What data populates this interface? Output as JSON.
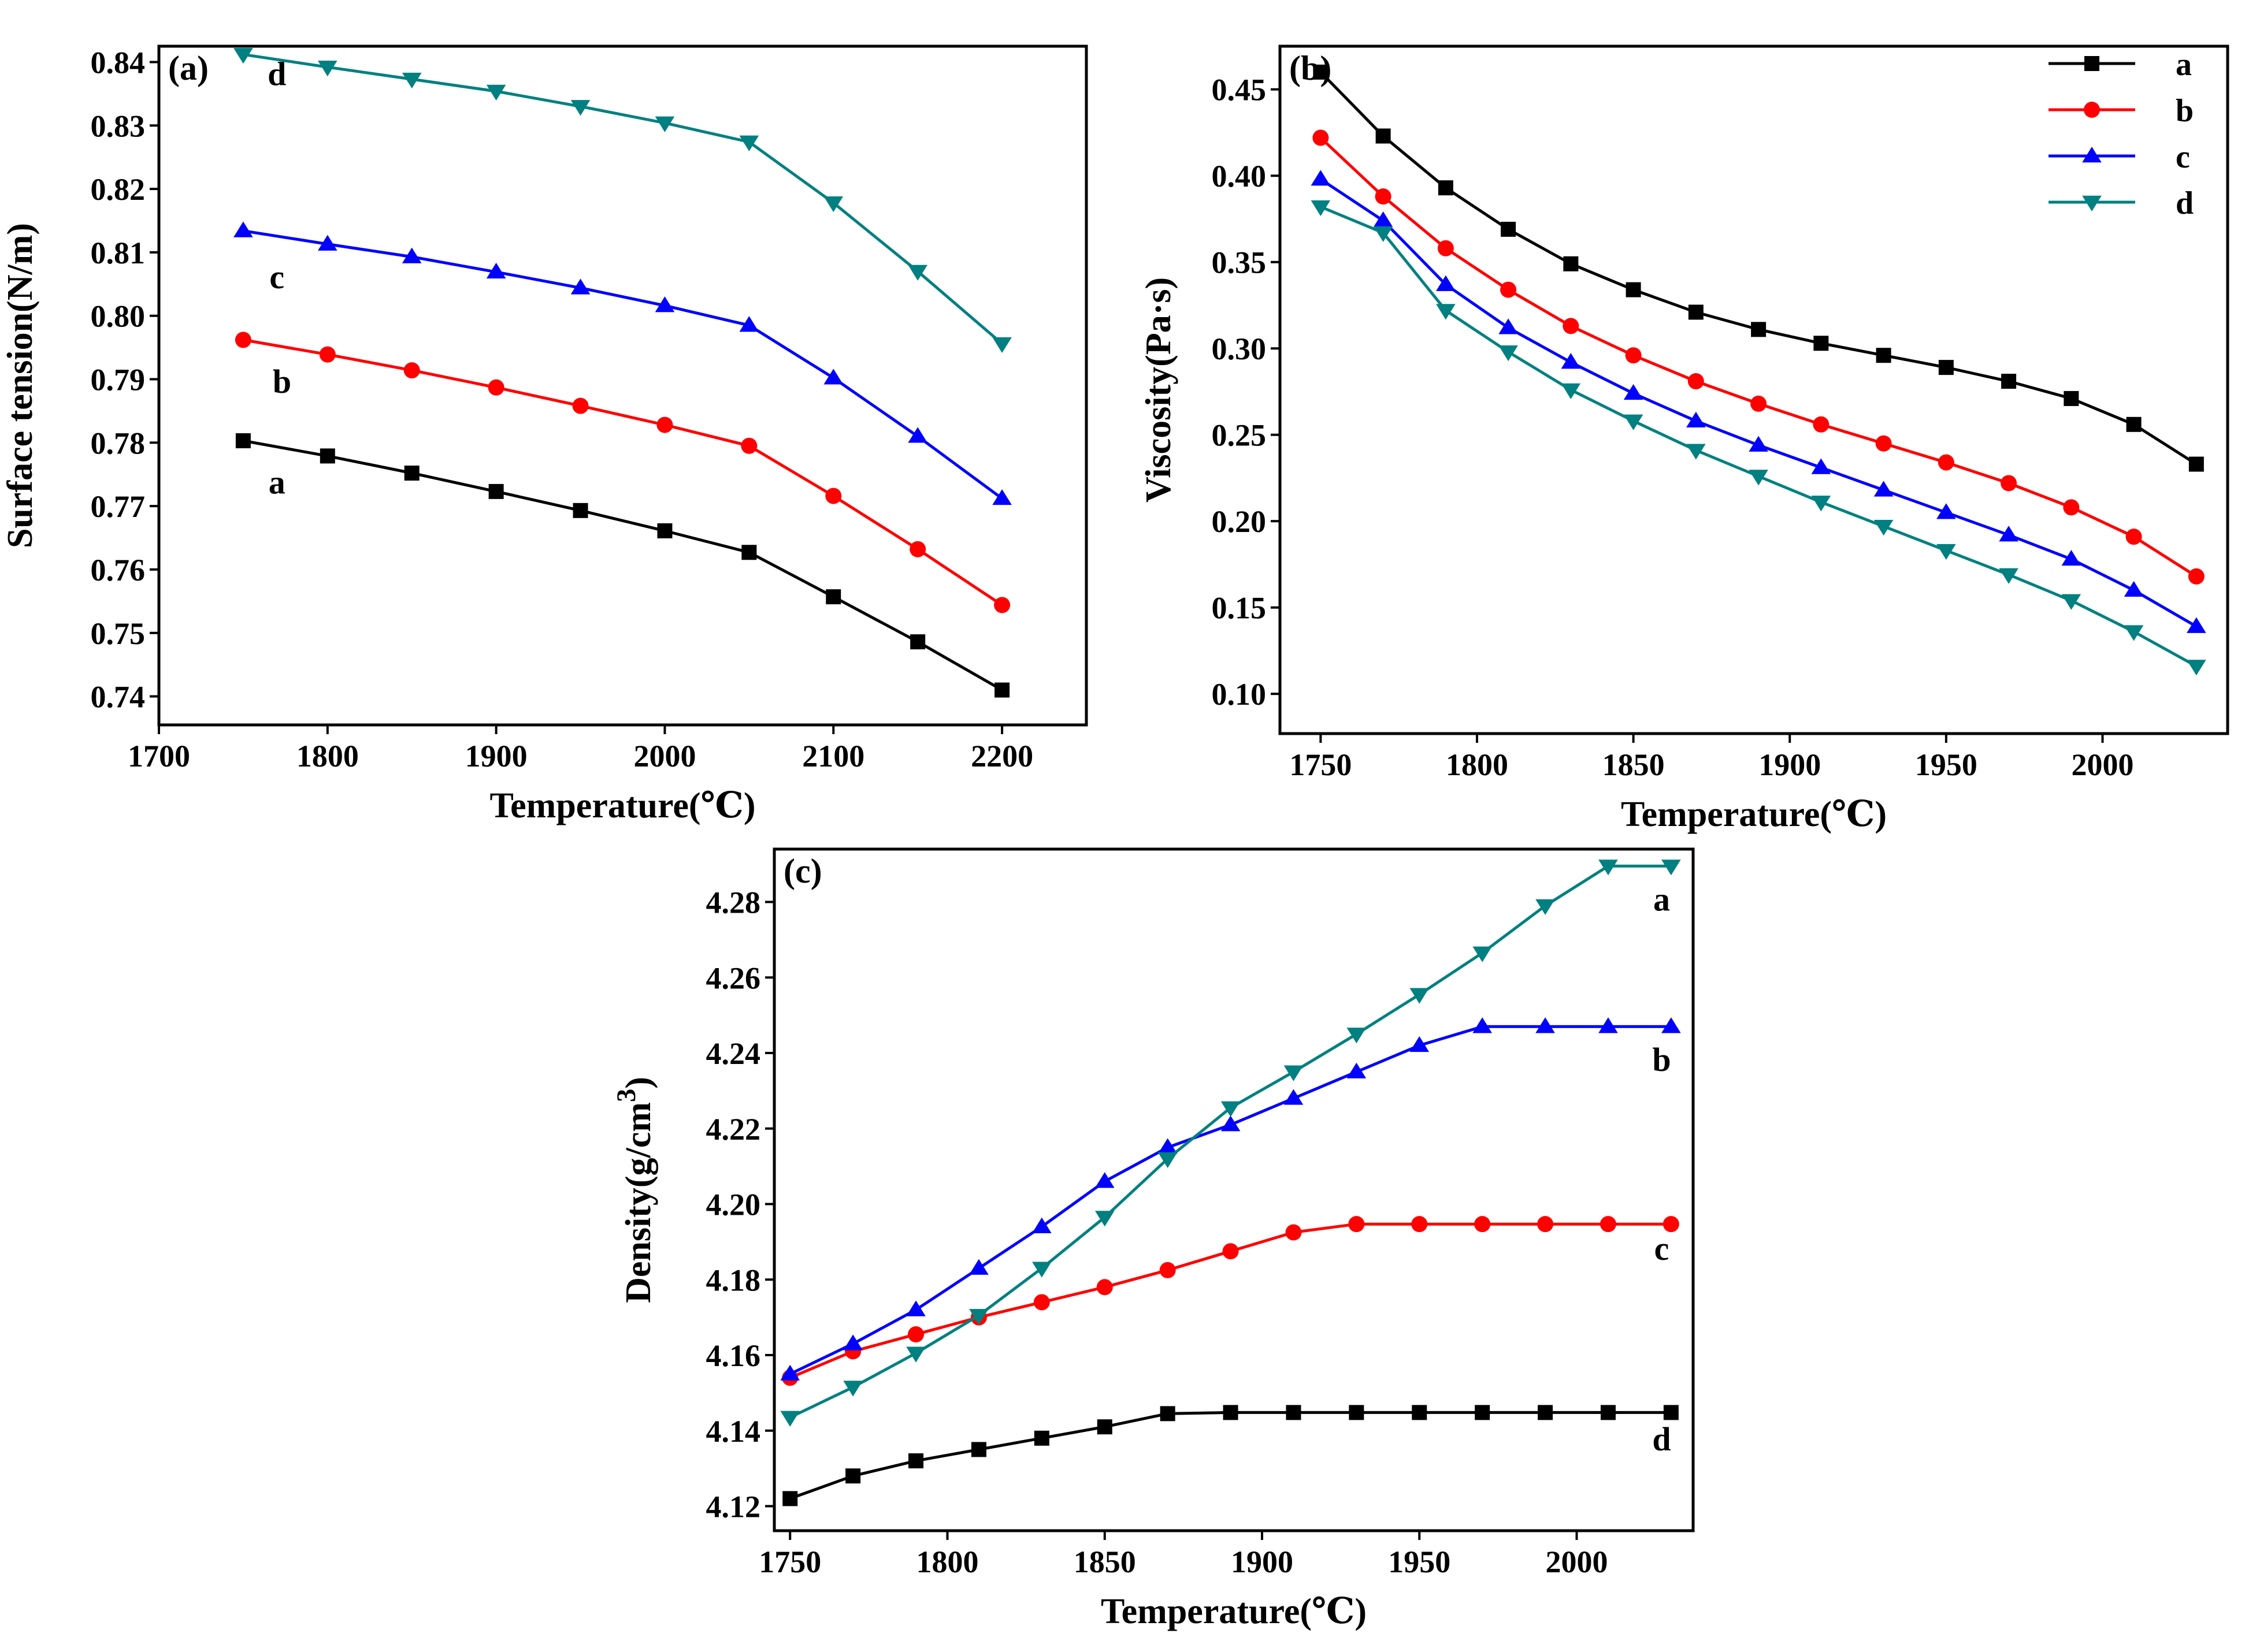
{
  "chart_data": [
    {
      "type": "line",
      "panel_label": "(a)",
      "xlabel": "Temperature(℃)",
      "ylabel": "Surface tension(N/m)",
      "xlim": [
        1700,
        2250
      ],
      "ylim": [
        0.7355,
        0.8425
      ],
      "xticks": [
        1700,
        1800,
        1900,
        2000,
        2100,
        2200
      ],
      "yticks": [
        0.74,
        0.75,
        0.76,
        0.77,
        0.78,
        0.79,
        0.8,
        0.81,
        0.82,
        0.83,
        0.84
      ],
      "ytick_labels": [
        "0.74",
        "0.75",
        "0.76",
        "0.77",
        "0.78",
        "0.79",
        "0.80",
        "0.81",
        "0.82",
        "0.83",
        "0.84"
      ],
      "legend": "none",
      "grid": false,
      "x": [
        1750,
        1800,
        1850,
        1900,
        1950,
        2000,
        2050,
        2100,
        2150,
        2200
      ],
      "series": [
        {
          "name": "a",
          "color": "#000000",
          "marker": "square",
          "values": [
            0.7803,
            0.7779,
            0.7752,
            0.7723,
            0.7693,
            0.7661,
            0.7627,
            0.7557,
            0.7486,
            0.741
          ],
          "label_pos": [
            1770,
            0.7736
          ]
        },
        {
          "name": "b",
          "color": "#ff0000",
          "marker": "circle",
          "values": [
            0.7962,
            0.7939,
            0.7914,
            0.7887,
            0.7858,
            0.7828,
            0.7795,
            0.7716,
            0.7632,
            0.7544
          ],
          "label_pos": [
            1773,
            0.7895
          ]
        },
        {
          "name": "c",
          "color": "#0000ff",
          "marker": "triangle-up",
          "values": [
            0.8134,
            0.8113,
            0.8093,
            0.8069,
            0.8044,
            0.8016,
            0.7985,
            0.7902,
            0.781,
            0.7712
          ],
          "label_pos": [
            1770,
            0.806
          ]
        },
        {
          "name": "d",
          "color": "#008080",
          "marker": "triangle-down",
          "values": [
            0.8412,
            0.8392,
            0.8373,
            0.8354,
            0.833,
            0.8304,
            0.8274,
            0.8178,
            0.807,
            0.7956
          ],
          "label_pos": [
            1770,
            0.838
          ]
        }
      ]
    },
    {
      "type": "line",
      "panel_label": "(b)",
      "xlabel": "Temperature(℃)",
      "ylabel": "Viscosity(Pa·s)",
      "xlim": [
        1737,
        2040
      ],
      "ylim": [
        0.077,
        0.475
      ],
      "xticks": [
        1750,
        1800,
        1850,
        1900,
        1950,
        2000
      ],
      "yticks": [
        0.1,
        0.15,
        0.2,
        0.25,
        0.3,
        0.35,
        0.4,
        0.45
      ],
      "ytick_labels": [
        "0.10",
        "0.15",
        "0.20",
        "0.25",
        "0.30",
        "0.35",
        "0.40",
        "0.45"
      ],
      "legend": "top-right",
      "grid": false,
      "x": [
        1750,
        1770,
        1790,
        1810,
        1830,
        1850,
        1870,
        1890,
        1910,
        1930,
        1950,
        1970,
        1990,
        2010,
        2030
      ],
      "series": [
        {
          "name": "a",
          "color": "#000000",
          "marker": "square",
          "values": [
            0.46,
            0.423,
            0.393,
            0.369,
            0.349,
            0.334,
            0.321,
            0.311,
            0.303,
            0.296,
            0.289,
            0.281,
            0.271,
            0.256,
            0.233
          ]
        },
        {
          "name": "b",
          "color": "#ff0000",
          "marker": "circle",
          "values": [
            0.422,
            0.388,
            0.358,
            0.334,
            0.313,
            0.296,
            0.281,
            0.268,
            0.256,
            0.245,
            0.234,
            0.222,
            0.208,
            0.191,
            0.168
          ]
        },
        {
          "name": "c",
          "color": "#0000ff",
          "marker": "triangle-up",
          "values": [
            0.398,
            0.374,
            0.337,
            0.312,
            0.292,
            0.274,
            0.258,
            0.244,
            0.231,
            0.218,
            0.205,
            0.192,
            0.178,
            0.16,
            0.139
          ]
        },
        {
          "name": "d",
          "color": "#008080",
          "marker": "triangle-down",
          "values": [
            0.382,
            0.367,
            0.322,
            0.298,
            0.276,
            0.258,
            0.241,
            0.226,
            0.211,
            0.197,
            0.183,
            0.169,
            0.154,
            0.136,
            0.116
          ]
        }
      ]
    },
    {
      "type": "line",
      "panel_label": "(c)",
      "xlabel": "Temperature(℃)",
      "ylabel": "Density(g/cm3)",
      "xlim": [
        1745,
        2037
      ],
      "ylim": [
        4.1135,
        4.294
      ],
      "xticks": [
        1750,
        1800,
        1850,
        1900,
        1950,
        2000
      ],
      "yticks": [
        4.12,
        4.14,
        4.16,
        4.18,
        4.2,
        4.22,
        4.24,
        4.26,
        4.28
      ],
      "ytick_labels": [
        "4.12",
        "4.14",
        "4.16",
        "4.18",
        "4.20",
        "4.22",
        "4.24",
        "4.26",
        "4.28"
      ],
      "legend": "none",
      "grid": false,
      "x": [
        1750,
        1770,
        1790,
        1810,
        1830,
        1850,
        1870,
        1890,
        1910,
        1930,
        1950,
        1970,
        1990,
        2010,
        2030
      ],
      "series": [
        {
          "name": "d",
          "color": "#000000",
          "marker": "square",
          "values": [
            4.122,
            4.128,
            4.132,
            4.135,
            4.138,
            4.141,
            4.1445,
            4.1448,
            4.1448,
            4.1448,
            4.1448,
            4.1448,
            4.1448,
            4.1448,
            4.1448
          ],
          "label_pos": [
            2027,
            4.1375
          ]
        },
        {
          "name": "c",
          "color": "#ff0000",
          "marker": "circle",
          "values": [
            4.154,
            4.161,
            4.1655,
            4.17,
            4.174,
            4.178,
            4.1825,
            4.1875,
            4.1925,
            4.1947,
            4.1947,
            4.1947,
            4.1947,
            4.1947,
            4.1947
          ],
          "label_pos": [
            2027,
            4.188
          ]
        },
        {
          "name": "b",
          "color": "#0000ff",
          "marker": "triangle-up",
          "values": [
            4.155,
            4.163,
            4.172,
            4.183,
            4.194,
            4.206,
            4.215,
            4.221,
            4.228,
            4.235,
            4.242,
            4.247,
            4.247,
            4.247,
            4.247
          ],
          "label_pos": [
            2027,
            4.238
          ]
        },
        {
          "name": "a",
          "color": "#008080",
          "marker": "triangle-down",
          "values": [
            4.1435,
            4.1515,
            4.1605,
            4.1705,
            4.183,
            4.1965,
            4.212,
            4.2255,
            4.235,
            4.245,
            4.2555,
            4.2665,
            4.279,
            4.2895,
            4.2895
          ],
          "label_pos": [
            2027,
            4.2805
          ]
        }
      ]
    }
  ]
}
